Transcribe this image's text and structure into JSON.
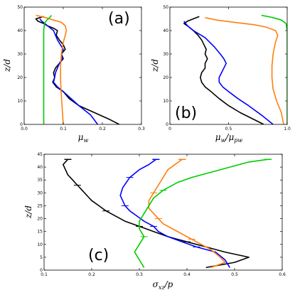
{
  "figure_alt": "Three-panel plot of profiles versus z/d",
  "colors": {
    "black": "#000000",
    "blue": "#0000ff",
    "orange": "#ff7f0e",
    "green": "#00cc00"
  },
  "chart_data": [
    {
      "id": "a",
      "type": "line",
      "panel_label": "(a)",
      "xlabel": "μw",
      "ylabel": "z/d",
      "xlim": [
        0,
        0.3
      ],
      "ylim": [
        0,
        50
      ],
      "xticks": [
        "0.0",
        "0.1",
        "0.2",
        "0.3"
      ],
      "yticks": [
        "0",
        "10",
        "20",
        "30",
        "40",
        "50"
      ],
      "series": [
        {
          "color": "black",
          "x": [
            0.243,
            0.22,
            0.18,
            0.14,
            0.115,
            0.1,
            0.082,
            0.073,
            0.078,
            0.075,
            0.08,
            0.09,
            0.1,
            0.095,
            0.105,
            0.1,
            0.09,
            0.082,
            0.085,
            0.075,
            0.06,
            0.05,
            0.035,
            0.03,
            0.05
          ],
          "y": [
            0,
            2,
            5,
            8,
            11,
            14,
            16,
            18,
            20,
            22,
            24,
            26,
            28,
            30,
            32,
            34,
            36,
            38,
            40,
            41,
            42,
            43,
            44,
            45,
            46
          ]
        },
        {
          "color": "blue",
          "x": [
            0.188,
            0.17,
            0.14,
            0.12,
            0.1,
            0.085,
            0.075,
            0.078,
            0.08,
            0.085,
            0.09,
            0.098,
            0.095,
            0.1,
            0.085,
            0.075,
            0.06,
            0.045,
            0.04
          ],
          "y": [
            0,
            4,
            8,
            11,
            14,
            16,
            18,
            20,
            22,
            24,
            26,
            28,
            30,
            32,
            36,
            40,
            42,
            44,
            45
          ]
        },
        {
          "color": "orange",
          "x": [
            0.1,
            0.098,
            0.096,
            0.094,
            0.093,
            0.093,
            0.095,
            0.1,
            0.105,
            0.108,
            0.105,
            0.095,
            0.075,
            0.055,
            0.03
          ],
          "y": [
            0,
            5,
            10,
            15,
            20,
            25,
            30,
            35,
            38,
            40,
            42,
            43.5,
            44.5,
            45.5,
            46.5
          ]
        },
        {
          "color": "green",
          "x": [
            0.05,
            0.05,
            0.05,
            0.05,
            0.05,
            0.052,
            0.058,
            0.065,
            0.07
          ],
          "y": [
            0,
            10,
            20,
            30,
            40,
            43,
            44.5,
            45.5,
            46.5
          ]
        }
      ]
    },
    {
      "id": "b",
      "type": "line",
      "panel_label": "(b)",
      "xlabel": "μw/μpw",
      "ylabel": "z/d",
      "xlim": [
        0,
        1
      ],
      "ylim": [
        0,
        50
      ],
      "xticks": [
        "0",
        "0.5",
        "1.0"
      ],
      "yticks": [
        "0",
        "10",
        "20",
        "30",
        "40",
        "50"
      ],
      "series": [
        {
          "color": "black",
          "x": [
            0.8,
            0.72,
            0.6,
            0.5,
            0.42,
            0.35,
            0.3,
            0.27,
            0.26,
            0.27,
            0.3,
            0.3,
            0.32,
            0.3,
            0.31,
            0.29,
            0.27,
            0.24,
            0.2,
            0.15,
            0.12,
            0.15,
            0.2,
            0.25
          ],
          "y": [
            0,
            2,
            5,
            8,
            11,
            14,
            16,
            18,
            20,
            22,
            24,
            26,
            28,
            30,
            32,
            34,
            36,
            38,
            40,
            42,
            43,
            44,
            45,
            46
          ]
        },
        {
          "color": "blue",
          "x": [
            0.88,
            0.78,
            0.67,
            0.58,
            0.5,
            0.45,
            0.42,
            0.42,
            0.44,
            0.46,
            0.48,
            0.46,
            0.43,
            0.38,
            0.3,
            0.2,
            0.15,
            0.12
          ],
          "y": [
            0,
            4,
            8,
            11,
            14,
            16,
            18,
            20,
            22,
            24,
            26,
            28,
            30,
            33,
            37,
            40,
            42,
            44
          ]
        },
        {
          "color": "orange",
          "x": [
            0.97,
            0.95,
            0.91,
            0.88,
            0.87,
            0.87,
            0.88,
            0.9,
            0.92,
            0.9,
            0.82,
            0.72,
            0.55,
            0.4,
            0.3
          ],
          "y": [
            0,
            5,
            10,
            15,
            20,
            25,
            30,
            35,
            38,
            40,
            41.5,
            42.5,
            43.5,
            44.5,
            45.5
          ]
        },
        {
          "color": "green",
          "x": [
            1.0,
            1.0,
            1.0,
            1.0,
            1.0,
            0.99,
            0.95,
            0.88,
            0.78
          ],
          "y": [
            0,
            10,
            20,
            30,
            40,
            43,
            44.5,
            45.5,
            46.5
          ]
        }
      ]
    },
    {
      "id": "c",
      "type": "line",
      "panel_label": "(c)",
      "xlabel": "σxz/p",
      "ylabel": "z/d",
      "xlim": [
        0.1,
        0.6
      ],
      "ylim": [
        0,
        45
      ],
      "xticks": [
        "0.1",
        "0.2",
        "0.3",
        "0.4",
        "0.5",
        "0.6"
      ],
      "yticks": [
        "0",
        "5",
        "10",
        "15",
        "20",
        "25",
        "30",
        "35",
        "40",
        "45"
      ],
      "series": [
        {
          "color": "black",
          "x": [
            0.44,
            0.5,
            0.53,
            0.48,
            0.44,
            0.4,
            0.36,
            0.33,
            0.3,
            0.27,
            0.25,
            0.23,
            0.215,
            0.2,
            0.19,
            0.18,
            0.17,
            0.16,
            0.15,
            0.145,
            0.14,
            0.15
          ],
          "y": [
            1,
            3,
            5,
            7,
            9,
            11,
            13,
            15,
            17,
            19,
            21,
            23,
            25,
            27,
            29,
            31,
            33,
            35,
            37,
            39,
            41,
            43
          ],
          "errbars": [
            5,
            8,
            11,
            16,
            21,
            26,
            31,
            36
          ]
        },
        {
          "color": "blue",
          "x": [
            0.49,
            0.48,
            0.46,
            0.42,
            0.39,
            0.36,
            0.34,
            0.33,
            0.31,
            0.295,
            0.28,
            0.27,
            0.265,
            0.26,
            0.265,
            0.28,
            0.3,
            0.32,
            0.335
          ],
          "y": [
            1,
            4,
            7,
            9,
            11,
            13,
            15,
            17,
            19,
            21,
            23,
            25,
            27,
            29,
            32,
            36,
            39,
            41,
            43
          ],
          "errbars": [
            3,
            7,
            11,
            15,
            19,
            23,
            27,
            31,
            35,
            39,
            42
          ]
        },
        {
          "color": "orange",
          "x": [
            0.45,
            0.48,
            0.47,
            0.45,
            0.43,
            0.41,
            0.39,
            0.37,
            0.35,
            0.34,
            0.33,
            0.32,
            0.32,
            0.33,
            0.34,
            0.35,
            0.36,
            0.39
          ],
          "y": [
            1,
            3,
            5,
            8,
            10,
            12,
            14,
            16,
            18,
            20,
            22,
            24,
            27,
            30,
            33,
            36,
            39,
            43
          ],
          "errbars": [
            5,
            9,
            13,
            17,
            21,
            25,
            30,
            35,
            40
          ]
        },
        {
          "color": "green",
          "x": [
            0.31,
            0.3,
            0.29,
            0.3,
            0.31,
            0.3,
            0.3,
            0.31,
            0.32,
            0.33,
            0.35,
            0.38,
            0.41,
            0.45,
            0.49,
            0.53,
            0.57
          ],
          "y": [
            1,
            4,
            7,
            10,
            13,
            16,
            19,
            22,
            25,
            28,
            31,
            34,
            36,
            38,
            40,
            42,
            43
          ],
          "errbars": [
            4,
            10,
            16,
            22,
            28,
            32,
            35,
            38,
            41
          ]
        }
      ]
    }
  ]
}
